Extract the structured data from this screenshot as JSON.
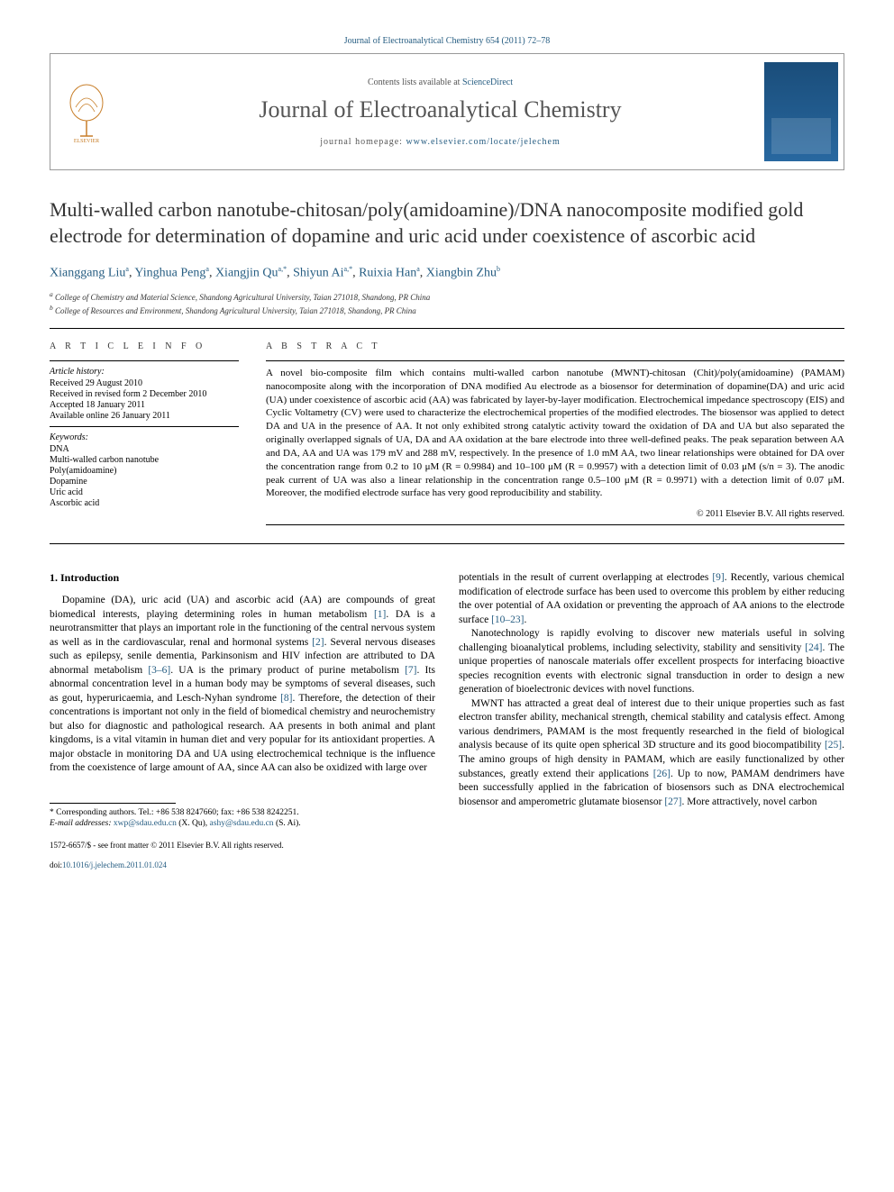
{
  "citation": "Journal of Electroanalytical Chemistry 654 (2011) 72–78",
  "header": {
    "contents_prefix": "Contents lists available at ",
    "contents_link": "ScienceDirect",
    "journal_name": "Journal of Electroanalytical Chemistry",
    "homepage_prefix": "journal homepage: ",
    "homepage_url": "www.elsevier.com/locate/jelechem"
  },
  "title": "Multi-walled carbon nanotube-chitosan/poly(amidoamine)/DNA nanocomposite modified gold electrode for determination of dopamine and uric acid under coexistence of ascorbic acid",
  "authors": [
    {
      "name": "Xianggang Liu",
      "sup": "a"
    },
    {
      "name": "Yinghua Peng",
      "sup": "a"
    },
    {
      "name": "Xiangjin Qu",
      "sup": "a,*"
    },
    {
      "name": "Shiyun Ai",
      "sup": "a,*"
    },
    {
      "name": "Ruixia Han",
      "sup": "a"
    },
    {
      "name": "Xiangbin Zhu",
      "sup": "b"
    }
  ],
  "affiliations": [
    {
      "sup": "a",
      "text": "College of Chemistry and Material Science, Shandong Agricultural University, Taian 271018, Shandong, PR China"
    },
    {
      "sup": "b",
      "text": "College of Resources and Environment, Shandong Agricultural University, Taian 271018, Shandong, PR China"
    }
  ],
  "article_info": {
    "heading": "A R T I C L E   I N F O",
    "history_label": "Article history:",
    "history": [
      "Received 29 August 2010",
      "Received in revised form 2 December 2010",
      "Accepted 18 January 2011",
      "Available online 26 January 2011"
    ],
    "keywords_label": "Keywords:",
    "keywords": [
      "DNA",
      "Multi-walled carbon nanotube",
      "Poly(amidoamine)",
      "Dopamine",
      "Uric acid",
      "Ascorbic acid"
    ]
  },
  "abstract": {
    "heading": "A B S T R A C T",
    "text": "A novel bio-composite film which contains multi-walled carbon nanotube (MWNT)-chitosan (Chit)/poly(amidoamine) (PAMAM) nanocomposite along with the incorporation of DNA modified Au electrode as a biosensor for determination of dopamine(DA) and uric acid (UA) under coexistence of ascorbic acid (AA) was fabricated by layer-by-layer modification. Electrochemical impedance spectroscopy (EIS) and Cyclic Voltametry (CV) were used to characterize the electrochemical properties of the modified electrodes. The biosensor was applied to detect DA and UA in the presence of AA. It not only exhibited strong catalytic activity toward the oxidation of DA and UA but also separated the originally overlapped signals of UA, DA and AA oxidation at the bare electrode into three well-defined peaks. The peak separation between AA and DA, AA and UA was 179 mV and 288 mV, respectively. In the presence of 1.0 mM AA, two linear relationships were obtained for DA over the concentration range from 0.2 to 10 μM (R = 0.9984) and 10–100 μM (R = 0.9957) with a detection limit of 0.03 μM (s/n = 3). The anodic peak current of UA was also a linear relationship in the concentration range 0.5–100 μM (R = 0.9971) with a detection limit of 0.07 μM. Moreover, the modified electrode surface has very good reproducibility and stability.",
    "copyright": "© 2011 Elsevier B.V. All rights reserved."
  },
  "body": {
    "section_head": "1. Introduction",
    "left_paras": [
      "Dopamine (DA), uric acid (UA) and ascorbic acid (AA) are compounds of great biomedical interests, playing determining roles in human metabolism [1]. DA is a neurotransmitter that plays an important role in the functioning of the central nervous system as well as in the cardiovascular, renal and hormonal systems [2]. Several nervous diseases such as epilepsy, senile dementia, Parkinsonism and HIV infection are attributed to DA abnormal metabolism [3–6]. UA is the primary product of purine metabolism [7]. Its abnormal concentration level in a human body may be symptoms of several diseases, such as gout, hyperuricaemia, and Lesch-Nyhan syndrome [8]. Therefore, the detection of their concentrations is important not only in the field of biomedical chemistry and neurochemistry but also for diagnostic and pathological research. AA presents in both animal and plant kingdoms, is a vital vitamin in human diet and very popular for its antioxidant properties. A major obstacle in monitoring DA and UA using electrochemical technique is the influence from the coexistence of large amount of AA, since AA can also be oxidized with large over"
    ],
    "right_paras": [
      "potentials in the result of current overlapping at electrodes [9]. Recently, various chemical modification of electrode surface has been used to overcome this problem by either reducing the over potential of AA oxidation or preventing the approach of AA anions to the electrode surface [10–23].",
      "Nanotechnology is rapidly evolving to discover new materials useful in solving challenging bioanalytical problems, including selectivity, stability and sensitivity [24]. The unique properties of nanoscale materials offer excellent prospects for interfacing bioactive species recognition events with electronic signal transduction in order to design a new generation of bioelectronic devices with novel functions.",
      "MWNT has attracted a great deal of interest due to their unique properties such as fast electron transfer ability, mechanical strength, chemical stability and catalysis effect. Among various dendrimers, PAMAM is the most frequently researched in the field of biological analysis because of its quite open spherical 3D structure and its good biocompatibility [25]. The amino groups of high density in PAMAM, which are easily functionalized by other substances, greatly extend their applications [26]. Up to now, PAMAM dendrimers have been successfully applied in the fabrication of biosensors such as DNA electrochemical biosensor and amperometric glutamate biosensor [27]. More attractively, novel carbon"
    ]
  },
  "footnote": {
    "corr_label": "* Corresponding authors. Tel.: +86 538 8247660; fax: +86 538 8242251.",
    "email_label": "E-mail addresses:",
    "emails": [
      {
        "addr": "xwp@sdau.edu.cn",
        "who": "(X. Qu),"
      },
      {
        "addr": "ashy@sdau.edu.cn",
        "who": "(S. Ai)."
      }
    ]
  },
  "footer": {
    "line1": "1572-6657/$ - see front matter © 2011 Elsevier B.V. All rights reserved.",
    "doi_label": "doi:",
    "doi": "10.1016/j.jelechem.2011.01.024"
  },
  "refs": {
    "r1": "[1]",
    "r2": "[2]",
    "r3_6": "[3–6]",
    "r7": "[7]",
    "r8": "[8]",
    "r9": "[9]",
    "r10_23": "[10–23]",
    "r24": "[24]",
    "r25": "[25]",
    "r26": "[26]",
    "r27": "[27]"
  }
}
